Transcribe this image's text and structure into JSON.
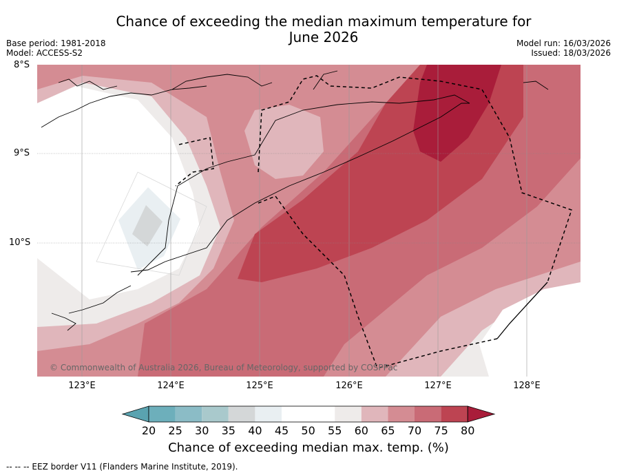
{
  "title": {
    "line1": "Chance of exceeding the median maximum temperature for",
    "line2": "June 2026"
  },
  "meta": {
    "base_period": "Base period: 1981-2018",
    "model": "Model: ACCESS-S2",
    "model_run": "Model run: 16/03/2026",
    "issued": "Issued: 18/03/2026"
  },
  "map": {
    "lon_range": [
      122.5,
      128.6
    ],
    "lat_range": [
      -11.5,
      -8.0
    ],
    "lat_labels": [
      {
        "value": -8,
        "label": "8°S"
      },
      {
        "value": -9,
        "label": "9°S"
      },
      {
        "value": -10,
        "label": "10°S"
      }
    ],
    "lon_labels": [
      {
        "value": 123,
        "label": "123°E"
      },
      {
        "value": 124,
        "label": "124°E"
      },
      {
        "value": 125,
        "label": "125°E"
      },
      {
        "value": 126,
        "label": "126°E"
      },
      {
        "value": 127,
        "label": "127°E"
      },
      {
        "value": 128,
        "label": "128°E"
      }
    ],
    "copyright": "© Commonwealth of Australia 2026, Bureau of Meteorology, supported by COSPPac"
  },
  "colorbar": {
    "label": "Chance of exceeding median max. temp. (%)",
    "ticks": [
      "20",
      "25",
      "30",
      "35",
      "40",
      "45",
      "50",
      "55",
      "60",
      "65",
      "70",
      "75",
      "80"
    ],
    "colors": [
      "#5aa3b0",
      "#6dafbb",
      "#8bbcc6",
      "#a9c9cc",
      "#d4d7d8",
      "#e9eff2",
      "#ffffff",
      "#ffffff",
      "#eeebea",
      "#e0b6bb",
      "#d48c93",
      "#c96b76",
      "#bd4452",
      "#a91d3a"
    ]
  },
  "footnote": "--  --  -- EEZ border V11 (Flanders Marine Institute, 2019)."
}
